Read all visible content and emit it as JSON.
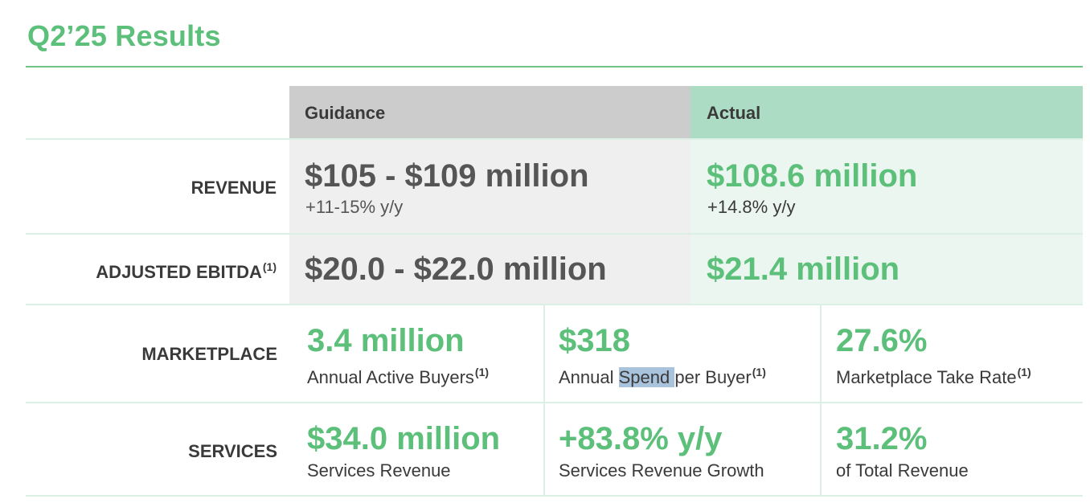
{
  "title": "Q2’25 Results",
  "headers": {
    "guidance": "Guidance",
    "actual": "Actual"
  },
  "footnote_marker": "(1)",
  "rows": {
    "revenue": {
      "label": "REVENUE",
      "guidance_value": "$105 - $109 million",
      "guidance_sub": "+11-15% y/y",
      "actual_value": "$108.6 million",
      "actual_sub": "+14.8% y/y"
    },
    "ebitda": {
      "label": "ADJUSTED EBITDA",
      "guidance_value": "$20.0 - $22.0 million",
      "actual_value": "$21.4 million"
    },
    "marketplace": {
      "label": "MARKETPLACE",
      "metrics": [
        {
          "value": "3.4 million",
          "caption": "Annual Active Buyers"
        },
        {
          "value": "$318",
          "caption_before": "Annual ",
          "caption_highlight": "Spend ",
          "caption_after": "per Buyer"
        },
        {
          "value": "27.6%",
          "caption": "Marketplace Take Rate"
        }
      ]
    },
    "services": {
      "label": "SERVICES",
      "metrics": [
        {
          "value": "$34.0 million",
          "caption": "Services Revenue"
        },
        {
          "value": "+83.8% y/y",
          "caption": "Services Revenue Growth"
        },
        {
          "value": "31.2%",
          "caption": "of Total Revenue"
        }
      ]
    }
  },
  "colors": {
    "green": "#5cbf7a",
    "guidance_header": "#cccccc",
    "actual_header": "#acdcc3",
    "guidance_cell": "#efefef",
    "actual_cell": "#eaf6ef",
    "selection": "#a9c3dd"
  }
}
